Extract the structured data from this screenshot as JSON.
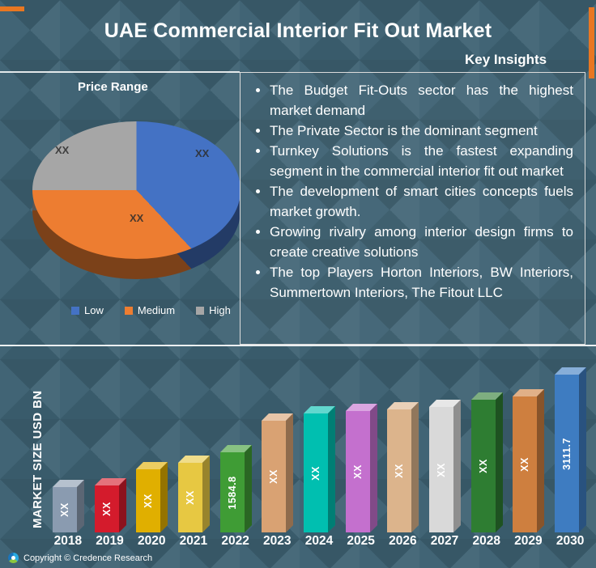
{
  "header": {
    "title": "UAE Commercial Interior Fit Out Market"
  },
  "key_insights": {
    "title": "Key Insights",
    "bullets": [
      "The Budget Fit-Outs sector has the highest market demand",
      "The Private Sector is the dominant segment",
      "Turnkey Solutions is the fastest expanding segment in the commercial interior fit out market",
      "The development of smart cities concepts fuels market growth.",
      "Growing rivalry among interior design firms to create creative solutions",
      "The top Players Horton Interiors, BW Interiors, Summertown Interiors, The Fitout LLC"
    ]
  },
  "chart_data": [
    {
      "type": "pie",
      "title": "Price Range",
      "legend_position": "bottom",
      "slices": [
        {
          "label": "Low",
          "data_label": "XX",
          "pct": 38,
          "color": "#4472c4"
        },
        {
          "label": "Medium",
          "data_label": "XX",
          "pct": 37,
          "color": "#ed7d31"
        },
        {
          "label": "High",
          "data_label": "XX",
          "pct": 25,
          "color": "#a6a6a6"
        }
      ],
      "note": "slice shares estimated from pixels; all data labels shown as XX in source"
    },
    {
      "type": "bar",
      "ylabel": "MARKET SIZE USD BN",
      "unit": "USD BN",
      "categories": [
        "2018",
        "2019",
        "2020",
        "2021",
        "2022",
        "2023",
        "2024",
        "2025",
        "2026",
        "2027",
        "2028",
        "2029",
        "2030"
      ],
      "labels": [
        "XX",
        "XX",
        "XX",
        "XX",
        "1584.8",
        "XX",
        "XX",
        "XX",
        "XX",
        "XX",
        "XX",
        "XX",
        "3111.7"
      ],
      "values": [
        900,
        920,
        1250,
        1380,
        1584.8,
        2200,
        2350,
        2400,
        2430,
        2480,
        2620,
        2680,
        3111.7
      ],
      "values_estimated": true,
      "values_note": "only 2022 (1584.8) and 2030 (3111.7) are labeled; remaining values estimated from bar heights",
      "colors": [
        "#8a9bb0",
        "#d41b2c",
        "#e0af00",
        "#e7c842",
        "#3f9c35",
        "#d9a273",
        "#00bfb0",
        "#c470ce",
        "#dcb48c",
        "#d9d9d9",
        "#2e7d32",
        "#ce7f3f",
        "#3e7cc1"
      ],
      "ylim": [
        0,
        3300
      ]
    }
  ],
  "accents": {
    "orange": "#e87722",
    "background": "#3d6172",
    "text": "#ffffff"
  },
  "footer": {
    "copyright": "Copyright © Credence Research"
  }
}
